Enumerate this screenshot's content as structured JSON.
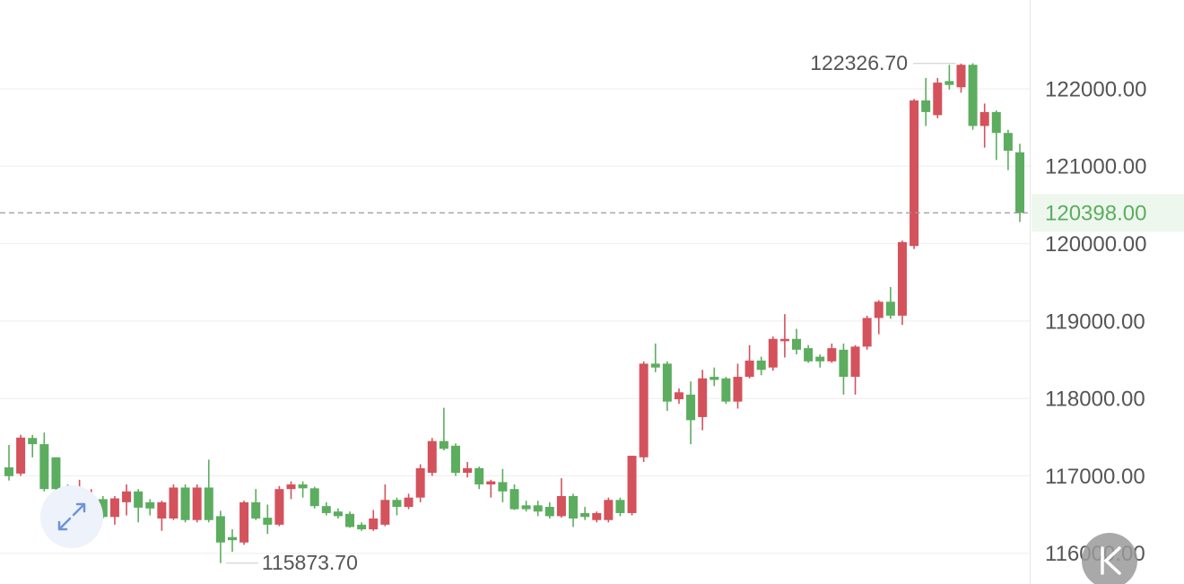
{
  "chart_data": {
    "type": "candlestick",
    "open": [
      117110,
      117030,
      117490,
      117410,
      117240,
      116830,
      116630,
      116660,
      116700,
      116470,
      116660,
      116800,
      116660,
      116450,
      116450,
      116850,
      116430,
      116850,
      116480,
      116210,
      116140,
      116660,
      116460,
      116370,
      116830,
      116890,
      116840,
      116610,
      116540,
      116510,
      116370,
      116310,
      116370,
      116690,
      116600,
      116720,
      117040,
      117450,
      117390,
      117040,
      117100,
      116890,
      116920,
      116830,
      116620,
      116620,
      116600,
      116480,
      116740,
      116520,
      116430,
      116430,
      116690,
      116520,
      117240,
      118450,
      118450,
      117990,
      118050,
      117760,
      118280,
      118260,
      117960,
      118280,
      118490,
      118400,
      118740,
      118770,
      118650,
      118540,
      118480,
      118630,
      118280,
      118670,
      119040,
      119250,
      119070,
      119970,
      121850,
      121660,
      122100,
      122020,
      122310,
      121520,
      121700,
      121430,
      121180
    ],
    "high": [
      117400,
      117530,
      117530,
      117560,
      117240,
      116890,
      116950,
      116830,
      116740,
      116740,
      116890,
      116830,
      116700,
      116680,
      116890,
      116890,
      116890,
      117210,
      116550,
      116310,
      116680,
      116830,
      116630,
      116870,
      116930,
      116930,
      116860,
      116660,
      116580,
      116540,
      116400,
      116560,
      116890,
      116720,
      116770,
      117150,
      117490,
      117880,
      117420,
      117180,
      117120,
      116950,
      117090,
      116890,
      116680,
      116680,
      116660,
      116970,
      116770,
      116600,
      116540,
      116720,
      116720,
      117260,
      118480,
      118710,
      118480,
      118130,
      118220,
      118370,
      118400,
      118280,
      118450,
      118690,
      118540,
      118800,
      119090,
      118900,
      118690,
      118570,
      118710,
      118710,
      118690,
      119070,
      119270,
      119440,
      120040,
      121870,
      122140,
      122140,
      122310,
      122326.7,
      122330,
      121810,
      121720,
      121470,
      121290
    ],
    "low": [
      116940,
      117000,
      117240,
      116800,
      116720,
      116600,
      116570,
      116600,
      116450,
      116370,
      116490,
      116400,
      116490,
      116290,
      116430,
      116400,
      116400,
      116400,
      115873.7,
      116020,
      116110,
      116430,
      116250,
      116350,
      116700,
      116720,
      116580,
      116490,
      116450,
      116330,
      116290,
      116290,
      116350,
      116490,
      116570,
      116660,
      117000,
      117330,
      117000,
      116980,
      116830,
      116720,
      116660,
      116560,
      116540,
      116480,
      116450,
      116460,
      116340,
      116430,
      116400,
      116400,
      116480,
      116490,
      117180,
      118340,
      117840,
      117930,
      117410,
      117590,
      118160,
      117930,
      117870,
      118260,
      118300,
      118360,
      118530,
      118570,
      118460,
      118400,
      118460,
      118050,
      118050,
      118630,
      118830,
      119030,
      118950,
      119930,
      121520,
      121620,
      121990,
      121950,
      121470,
      121240,
      121080,
      120950,
      120280
    ],
    "close": [
      116997,
      117495,
      117410,
      116830,
      116830,
      116630,
      116720,
      116720,
      116470,
      116710,
      116800,
      116590,
      116580,
      116660,
      116850,
      116430,
      116850,
      116430,
      116140,
      116170,
      116660,
      116450,
      116370,
      116830,
      116890,
      116840,
      116610,
      116520,
      116480,
      116340,
      116310,
      116450,
      116690,
      116600,
      116720,
      117100,
      117450,
      117350,
      117040,
      117100,
      116890,
      116930,
      116800,
      116570,
      116570,
      116540,
      116480,
      116740,
      116450,
      116470,
      116520,
      116690,
      116520,
      117260,
      118450,
      118400,
      117960,
      118080,
      117720,
      118260,
      118240,
      117960,
      118280,
      118490,
      118370,
      118770,
      118770,
      118630,
      118480,
      118480,
      118650,
      118280,
      118670,
      119040,
      119250,
      119070,
      120020,
      121850,
      121700,
      122080,
      122050,
      122310,
      121520,
      121700,
      121430,
      121200,
      120398
    ],
    "up_color": "#d4525c",
    "down_color": "#5cad5f",
    "ylim": [
      115604,
      123147
    ],
    "yticks": [
      {
        "value": 116000,
        "label": "116000.00"
      },
      {
        "value": 117000,
        "label": "117000.00"
      },
      {
        "value": 118000,
        "label": "118000.00"
      },
      {
        "value": 119000,
        "label": "119000.00"
      },
      {
        "value": 120000,
        "label": "120000.00"
      },
      {
        "value": 121000,
        "label": "121000.00"
      },
      {
        "value": 122000,
        "label": "122000.00"
      }
    ],
    "grid": true,
    "max_high": {
      "value": 122326.7,
      "label": "122326.70"
    },
    "min_low": {
      "value": 115873.7,
      "label": "115873.70"
    },
    "last_price": {
      "value": 120398,
      "label": "120398.00"
    }
  }
}
